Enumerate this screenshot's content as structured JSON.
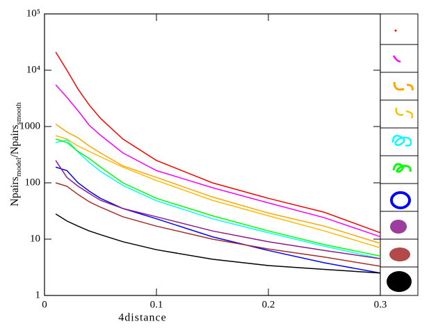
{
  "chart_data": {
    "type": "line",
    "log_y": true,
    "xlabel": "4distance",
    "ylabel": [
      "Npairs",
      "model",
      "/Npairs",
      "smooth"
    ],
    "x": [
      0.01,
      0.02,
      0.03,
      0.04,
      0.05,
      0.07,
      0.1,
      0.15,
      0.2,
      0.25,
      0.3
    ],
    "xlim": [
      0,
      0.3
    ],
    "xticks": [
      0,
      0.1,
      0.2,
      0.3
    ],
    "ylim": [
      1,
      100000
    ],
    "yticks": [
      1,
      10,
      100,
      1000,
      {
        "value": 10000,
        "label": "10⁴"
      },
      {
        "value": 100000,
        "label": "10⁵"
      }
    ],
    "series": [
      {
        "color": "#ff0000",
        "values": [
          21000,
          10000,
          4600,
          2400,
          1400,
          600,
          250,
          100,
          53,
          30,
          13
        ]
      },
      {
        "color": "#ff00ff",
        "values": [
          5500,
          3300,
          1900,
          1050,
          700,
          340,
          165,
          82,
          44,
          24,
          11
        ]
      },
      {
        "color": "#ffa500",
        "values": [
          1100,
          800,
          630,
          450,
          340,
          200,
          125,
          56,
          29,
          17,
          8.4
        ]
      },
      {
        "color": "#ffbb00",
        "values": [
          690,
          600,
          450,
          360,
          290,
          190,
          110,
          49,
          26,
          14,
          7
        ]
      },
      {
        "color": "#00ffff",
        "values": [
          520,
          580,
          350,
          230,
          160,
          90,
          48,
          23,
          13,
          7.5,
          4.5
        ]
      },
      {
        "color": "#00ff00",
        "values": [
          600,
          520,
          360,
          270,
          190,
          100,
          53,
          26,
          14,
          8,
          5
        ]
      },
      {
        "color": "#0000ff",
        "values": [
          190,
          165,
          100,
          71,
          53,
          35,
          23,
          11,
          6.3,
          3.8,
          2.5
        ]
      },
      {
        "color": "#8b1a8b",
        "values": [
          250,
          125,
          87,
          65,
          49,
          35,
          25,
          14,
          9,
          6.3,
          4.5
        ]
      },
      {
        "color": "#a52a2a",
        "values": [
          100,
          87,
          62,
          46,
          37,
          25,
          17,
          10,
          6.7,
          4.8,
          3.3
        ]
      },
      {
        "color": "#000000",
        "values": [
          28,
          21,
          17,
          14,
          12,
          9,
          6.5,
          4.4,
          3.4,
          2.9,
          2.5
        ]
      }
    ]
  }
}
